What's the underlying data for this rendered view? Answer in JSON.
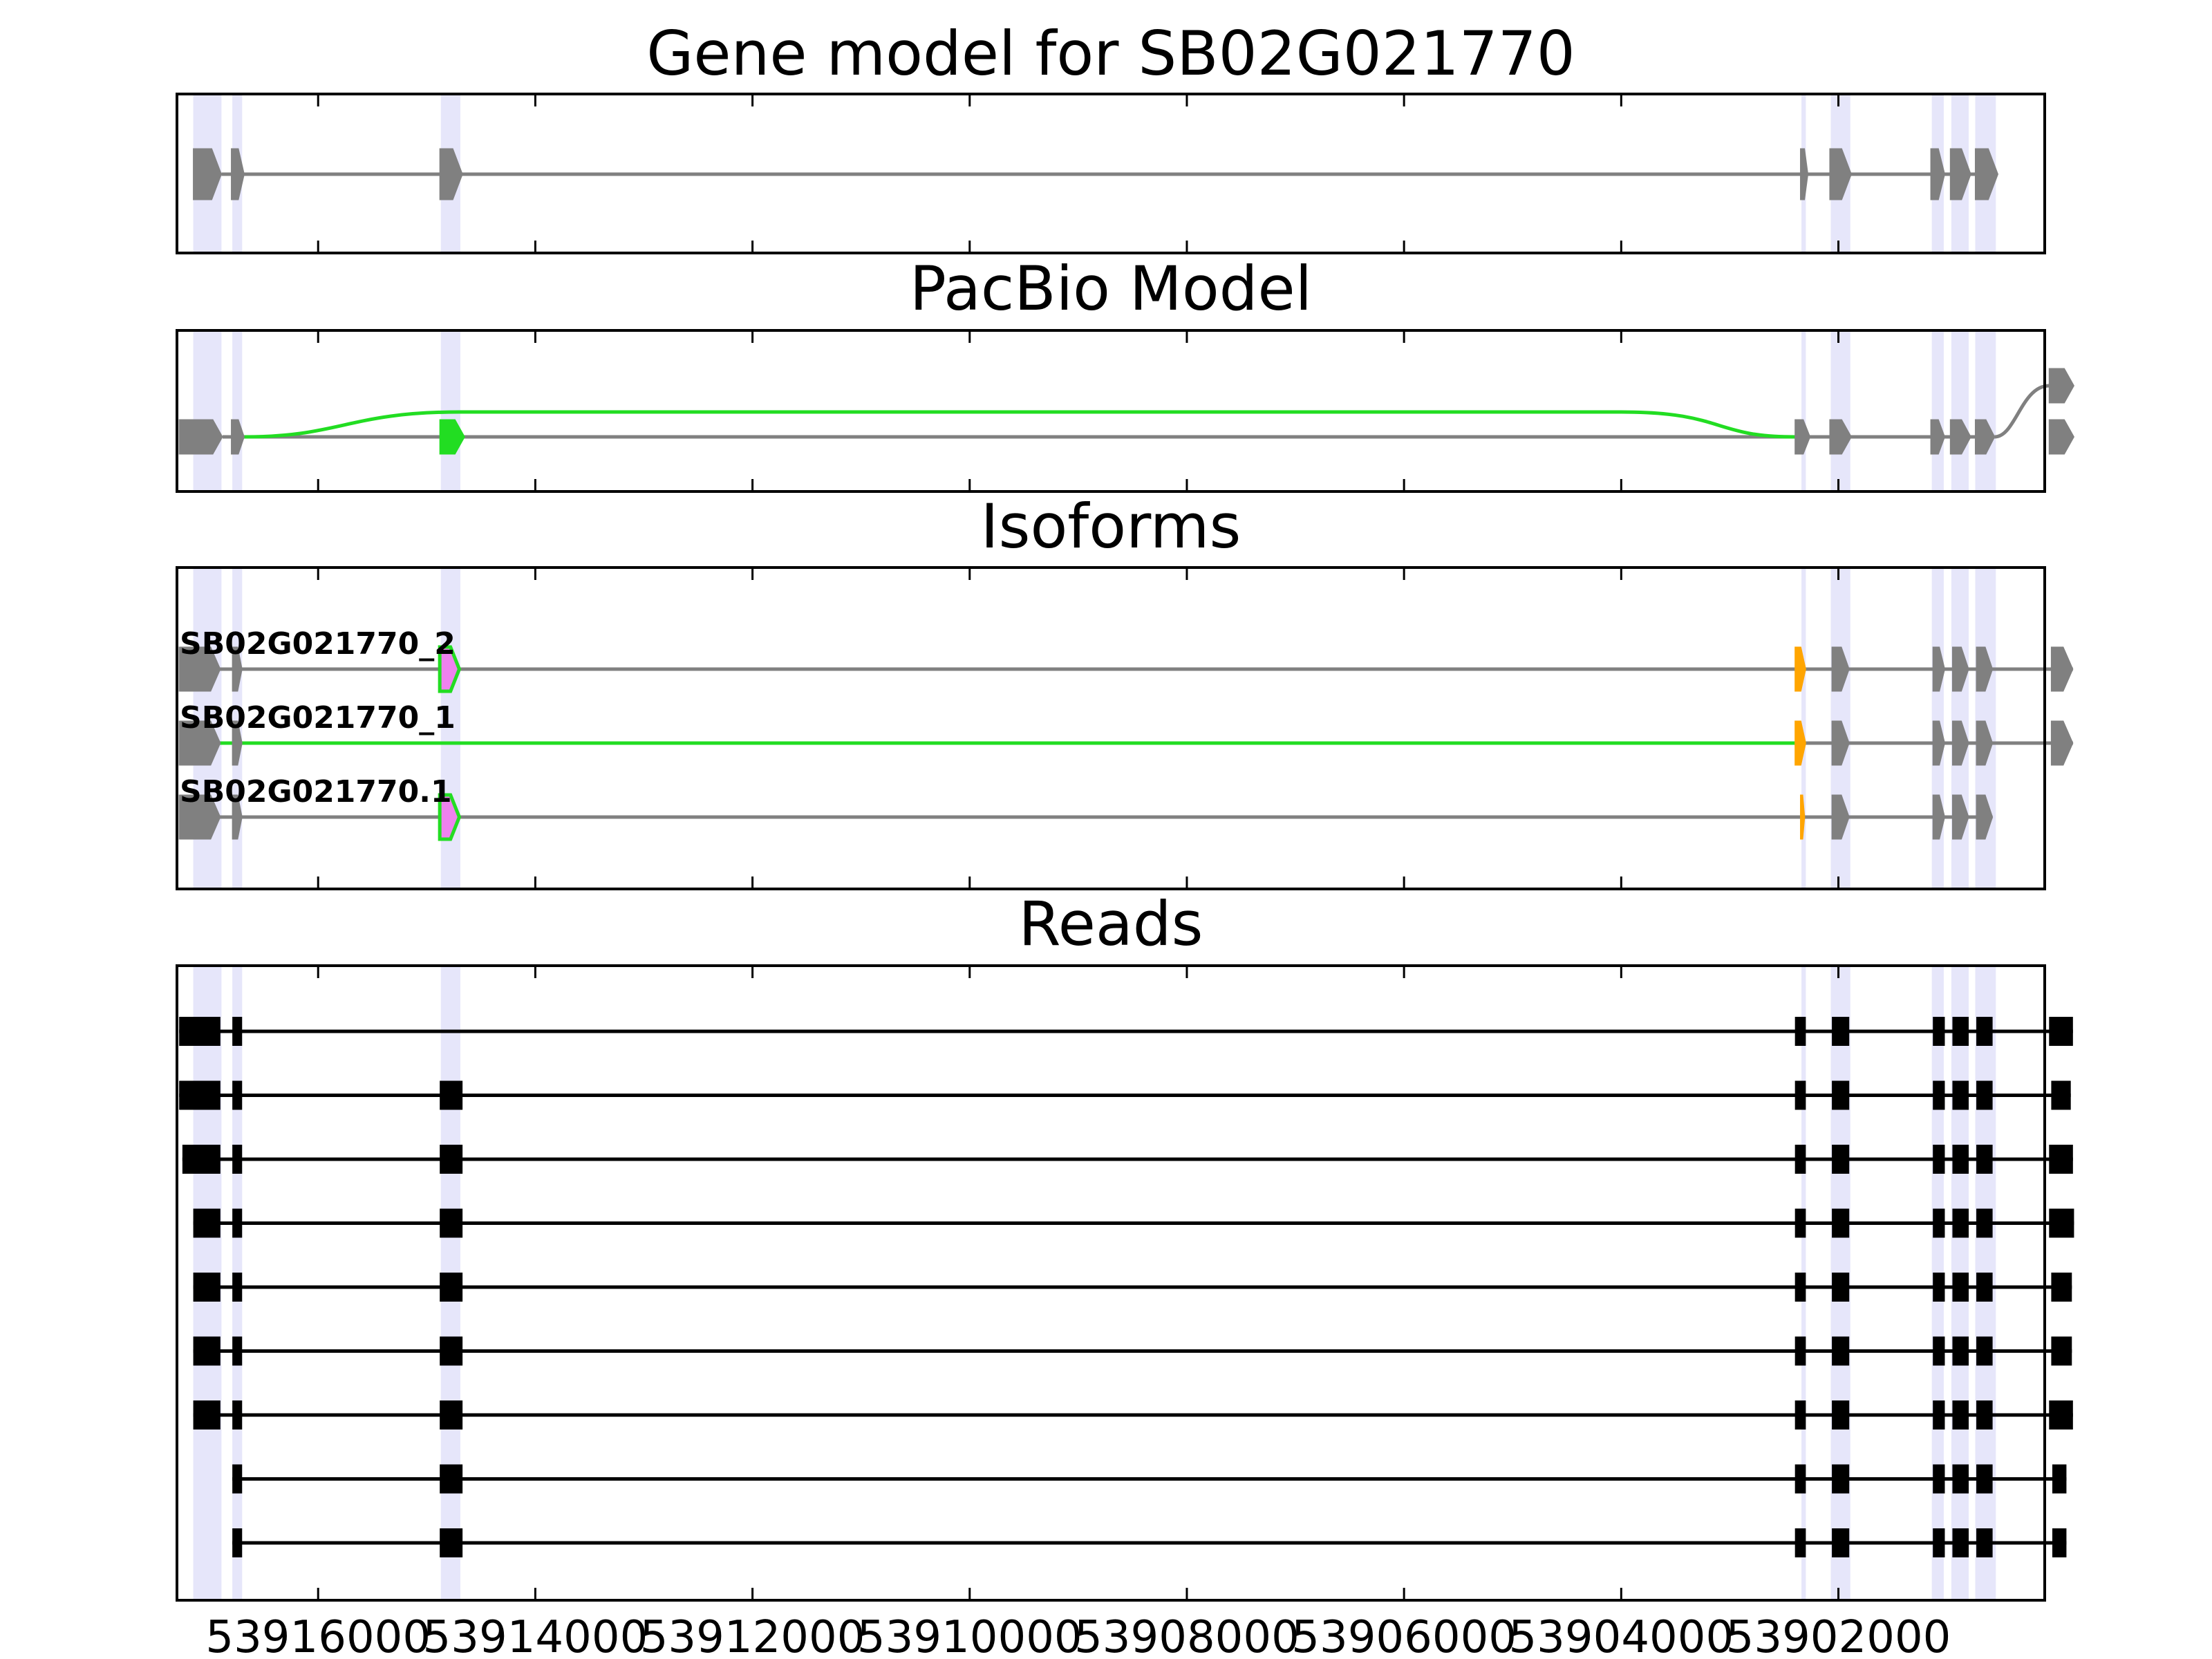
{
  "chart_data": [
    {
      "type": "gene_model",
      "panel": "gene",
      "title": "Gene model for SB02G021770",
      "features": [
        {
          "type": "exon",
          "start": 53917150,
          "end": 53916890,
          "color": "#808080"
        },
        {
          "type": "exon",
          "start": 53916800,
          "end": 53916680,
          "color": "#808080"
        },
        {
          "type": "exon",
          "start": 53914880,
          "end": 53914670,
          "color": "#808080"
        },
        {
          "type": "exon",
          "start": 53902350,
          "end": 53902280,
          "color": "#808080"
        },
        {
          "type": "exon",
          "start": 53902080,
          "end": 53901880,
          "color": "#808080"
        },
        {
          "type": "exon",
          "start": 53901150,
          "end": 53901020,
          "color": "#808080"
        },
        {
          "type": "exon",
          "start": 53900970,
          "end": 53900780,
          "color": "#808080"
        },
        {
          "type": "exon",
          "start": 53900740,
          "end": 53900530,
          "color": "#808080"
        }
      ]
    },
    {
      "type": "gene_model",
      "panel": "pacbio",
      "title": "PacBio Model",
      "features": [
        {
          "type": "exon",
          "start": 53917280,
          "end": 53916880,
          "color": "#808080"
        },
        {
          "type": "exon",
          "start": 53916800,
          "end": 53916680,
          "color": "#808080"
        },
        {
          "type": "exon",
          "start": 53914880,
          "end": 53914650,
          "color": "#22dd22"
        },
        {
          "type": "exon",
          "start": 53902400,
          "end": 53902260,
          "color": "#808080"
        },
        {
          "type": "exon",
          "start": 53902080,
          "end": 53901880,
          "color": "#808080"
        },
        {
          "type": "exon",
          "start": 53901150,
          "end": 53901020,
          "color": "#808080"
        },
        {
          "type": "exon",
          "start": 53900970,
          "end": 53900780,
          "color": "#808080"
        },
        {
          "type": "exon",
          "start": 53900740,
          "end": 53900560,
          "color": "#808080"
        },
        {
          "type": "exon",
          "start": 53900060,
          "end": 53899830,
          "color": "#808080"
        },
        {
          "type": "exon",
          "start": 53900060,
          "end": 53899830,
          "color": "#808080",
          "lane": "upper"
        }
      ]
    },
    {
      "type": "isoforms",
      "panel": "isoforms",
      "title": "Isoforms",
      "isoforms": [
        {
          "name": "SB02G021770_2",
          "exons": [
            {
              "start": 53917280,
              "end": 53916900,
              "color": "#808080"
            },
            {
              "start": 53916790,
              "end": 53916700,
              "color": "#808080"
            },
            {
              "start": 53914880,
              "end": 53914700,
              "color": "#ee82ee"
            },
            {
              "start": 53902400,
              "end": 53902300,
              "color": "#ffa500"
            },
            {
              "start": 53902060,
              "end": 53901900,
              "color": "#808080"
            },
            {
              "start": 53901130,
              "end": 53901020,
              "color": "#808080"
            },
            {
              "start": 53900950,
              "end": 53900800,
              "color": "#808080"
            },
            {
              "start": 53900730,
              "end": 53900580,
              "color": "#808080"
            },
            {
              "start": 53900040,
              "end": 53899840,
              "color": "#808080"
            }
          ]
        },
        {
          "name": "SB02G021770_1",
          "exons": [
            {
              "start": 53917280,
              "end": 53916900,
              "color": "#808080"
            },
            {
              "start": 53916790,
              "end": 53916700,
              "color": "#808080"
            },
            {
              "start": 53902400,
              "end": 53902300,
              "color": "#ffa500"
            },
            {
              "start": 53902060,
              "end": 53901900,
              "color": "#808080"
            },
            {
              "start": 53901130,
              "end": 53901020,
              "color": "#808080"
            },
            {
              "start": 53900950,
              "end": 53900800,
              "color": "#808080"
            },
            {
              "start": 53900730,
              "end": 53900580,
              "color": "#808080"
            },
            {
              "start": 53900040,
              "end": 53899840,
              "color": "#808080"
            }
          ]
        },
        {
          "name": "SB02G021770.1",
          "exons": [
            {
              "start": 53917280,
              "end": 53916900,
              "color": "#808080"
            },
            {
              "start": 53916790,
              "end": 53916700,
              "color": "#808080"
            },
            {
              "start": 53914880,
              "end": 53914700,
              "color": "#ee82ee"
            },
            {
              "start": 53902350,
              "end": 53902310,
              "color": "#ffa500"
            },
            {
              "start": 53902060,
              "end": 53901900,
              "color": "#808080"
            },
            {
              "start": 53901130,
              "end": 53901020,
              "color": "#808080"
            },
            {
              "start": 53900950,
              "end": 53900800,
              "color": "#808080"
            },
            {
              "start": 53900730,
              "end": 53900580,
              "color": "#808080"
            }
          ]
        }
      ]
    },
    {
      "type": "reads",
      "panel": "reads",
      "title": "Reads",
      "reads": [
        {
          "exons": [
            [
              53917280,
              53916900
            ],
            [
              53916790,
              53916700
            ],
            [
              53902400,
              53902300
            ],
            [
              53902060,
              53901900
            ],
            [
              53901130,
              53901020
            ],
            [
              53900950,
              53900800
            ],
            [
              53900730,
              53900580
            ],
            [
              53900060,
              53899840
            ]
          ]
        },
        {
          "exons": [
            [
              53917280,
              53916900
            ],
            [
              53916790,
              53916700
            ],
            [
              53914880,
              53914670
            ],
            [
              53902400,
              53902300
            ],
            [
              53902060,
              53901900
            ],
            [
              53901130,
              53901020
            ],
            [
              53900950,
              53900800
            ],
            [
              53900730,
              53900580
            ],
            [
              53900040,
              53899860
            ]
          ]
        },
        {
          "exons": [
            [
              53917250,
              53916900
            ],
            [
              53916790,
              53916700
            ],
            [
              53914880,
              53914670
            ],
            [
              53902400,
              53902300
            ],
            [
              53902060,
              53901900
            ],
            [
              53901130,
              53901020
            ],
            [
              53900950,
              53900800
            ],
            [
              53900730,
              53900580
            ],
            [
              53900060,
              53899840
            ]
          ]
        },
        {
          "exons": [
            [
              53917150,
              53916900
            ],
            [
              53916790,
              53916700
            ],
            [
              53914880,
              53914670
            ],
            [
              53902400,
              53902300
            ],
            [
              53902060,
              53901900
            ],
            [
              53901130,
              53901020
            ],
            [
              53900950,
              53900800
            ],
            [
              53900730,
              53900580
            ],
            [
              53900060,
              53899830
            ]
          ]
        },
        {
          "exons": [
            [
              53917150,
              53916900
            ],
            [
              53916790,
              53916700
            ],
            [
              53914880,
              53914670
            ],
            [
              53902400,
              53902300
            ],
            [
              53902060,
              53901900
            ],
            [
              53901130,
              53901020
            ],
            [
              53900950,
              53900800
            ],
            [
              53900730,
              53900580
            ],
            [
              53900040,
              53899850
            ]
          ]
        },
        {
          "exons": [
            [
              53917150,
              53916900
            ],
            [
              53916790,
              53916700
            ],
            [
              53914880,
              53914670
            ],
            [
              53902400,
              53902300
            ],
            [
              53902060,
              53901900
            ],
            [
              53901130,
              53901020
            ],
            [
              53900950,
              53900800
            ],
            [
              53900730,
              53900580
            ],
            [
              53900040,
              53899850
            ]
          ]
        },
        {
          "exons": [
            [
              53917150,
              53916900
            ],
            [
              53916790,
              53916700
            ],
            [
              53914880,
              53914670
            ],
            [
              53902400,
              53902300
            ],
            [
              53902060,
              53901900
            ],
            [
              53901130,
              53901020
            ],
            [
              53900950,
              53900800
            ],
            [
              53900730,
              53900580
            ],
            [
              53900060,
              53899840
            ]
          ]
        },
        {
          "exons": [
            [
              53916790,
              53916700
            ],
            [
              53914880,
              53914670
            ],
            [
              53902400,
              53902300
            ],
            [
              53902060,
              53901900
            ],
            [
              53901130,
              53901020
            ],
            [
              53900950,
              53900800
            ],
            [
              53900730,
              53900580
            ],
            [
              53900030,
              53899900
            ]
          ]
        },
        {
          "exons": [
            [
              53916790,
              53916700
            ],
            [
              53914880,
              53914670
            ],
            [
              53902400,
              53902300
            ],
            [
              53902060,
              53901900
            ],
            [
              53901130,
              53901020
            ],
            [
              53900950,
              53900800
            ],
            [
              53900730,
              53900580
            ],
            [
              53900030,
              53899900
            ]
          ]
        }
      ]
    }
  ],
  "x_axis": {
    "range": [
      53917300,
      53900100
    ],
    "ticks": [
      53916000,
      53914000,
      53912000,
      53910000,
      53908000,
      53906000,
      53904000,
      53902000
    ],
    "tick_labels": [
      "53916000",
      "53914000",
      "53912000",
      "53910000",
      "53908000",
      "53906000",
      "53904000",
      "53902000"
    ]
  },
  "highlight_regions": [
    [
      53917150,
      53916890
    ],
    [
      53916790,
      53916700
    ],
    [
      53914870,
      53914690
    ],
    [
      53902340,
      53902300
    ],
    [
      53902070,
      53901890
    ],
    [
      53901140,
      53901030
    ],
    [
      53900960,
      53900800
    ],
    [
      53900740,
      53900550
    ]
  ],
  "colors": {
    "exon_gray": "#808080",
    "pacbio_green": "#22dd22",
    "novel_violet": "#ee82ee",
    "alt_orange": "#ffa500",
    "highlight": "#e6e6fa",
    "read_black": "#000000"
  }
}
